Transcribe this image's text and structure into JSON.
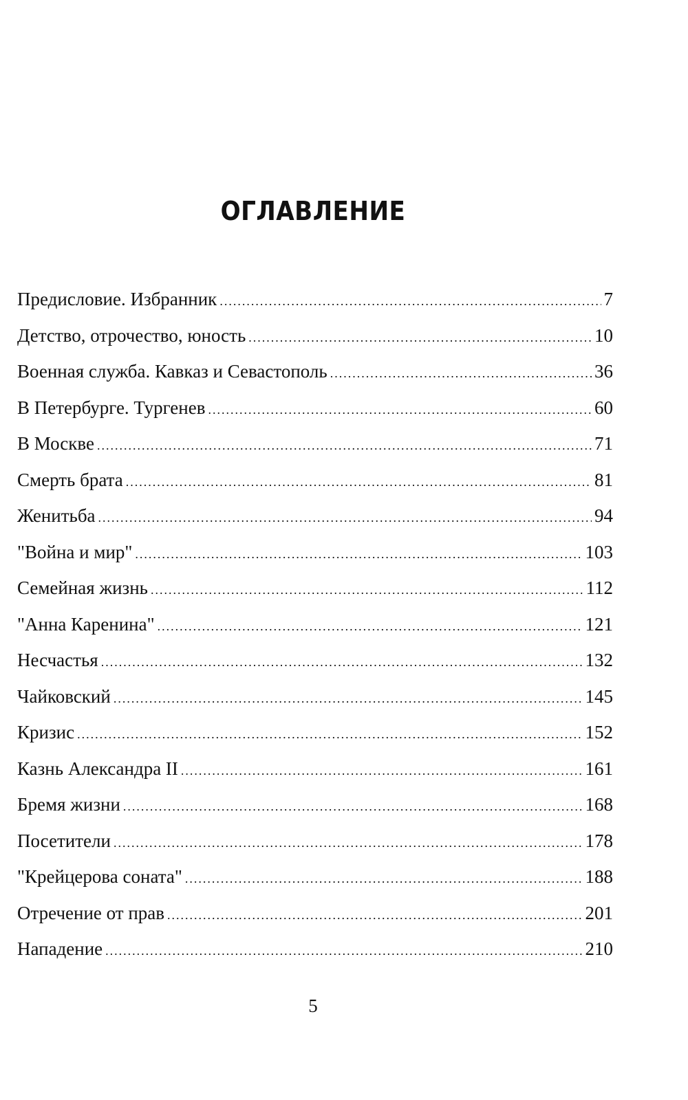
{
  "title": "ОГЛАВЛЕНИЕ",
  "entries": [
    {
      "label": "Предисловие. Избранник",
      "page": "7"
    },
    {
      "label": "Детство, отрочество, юность",
      "page": "10"
    },
    {
      "label": "Военная служба. Кавказ и Севастополь",
      "page": "36"
    },
    {
      "label": "В Петербурге. Тургенев",
      "page": "60"
    },
    {
      "label": "В Москве",
      "page": "71"
    },
    {
      "label": "Смерть брата",
      "page": "81"
    },
    {
      "label": "Женитьба",
      "page": "94"
    },
    {
      "label": "\"Война и мир\"",
      "page": "103"
    },
    {
      "label": "Семейная жизнь",
      "page": "112"
    },
    {
      "label": "\"Анна Каренина\"",
      "page": "121"
    },
    {
      "label": "Несчастья",
      "page": "132"
    },
    {
      "label": "Чайковский",
      "page": "145"
    },
    {
      "label": "Кризис",
      "page": "152"
    },
    {
      "label": "Казнь Александра II",
      "page": "161"
    },
    {
      "label": "Бремя жизни",
      "page": "168"
    },
    {
      "label": "Посетители",
      "page": "178"
    },
    {
      "label": "\"Крейцерова соната\"",
      "page": "188"
    },
    {
      "label": "Отречение от прав",
      "page": "201"
    },
    {
      "label": "Нападение",
      "page": "210"
    }
  ],
  "page_number": "5"
}
